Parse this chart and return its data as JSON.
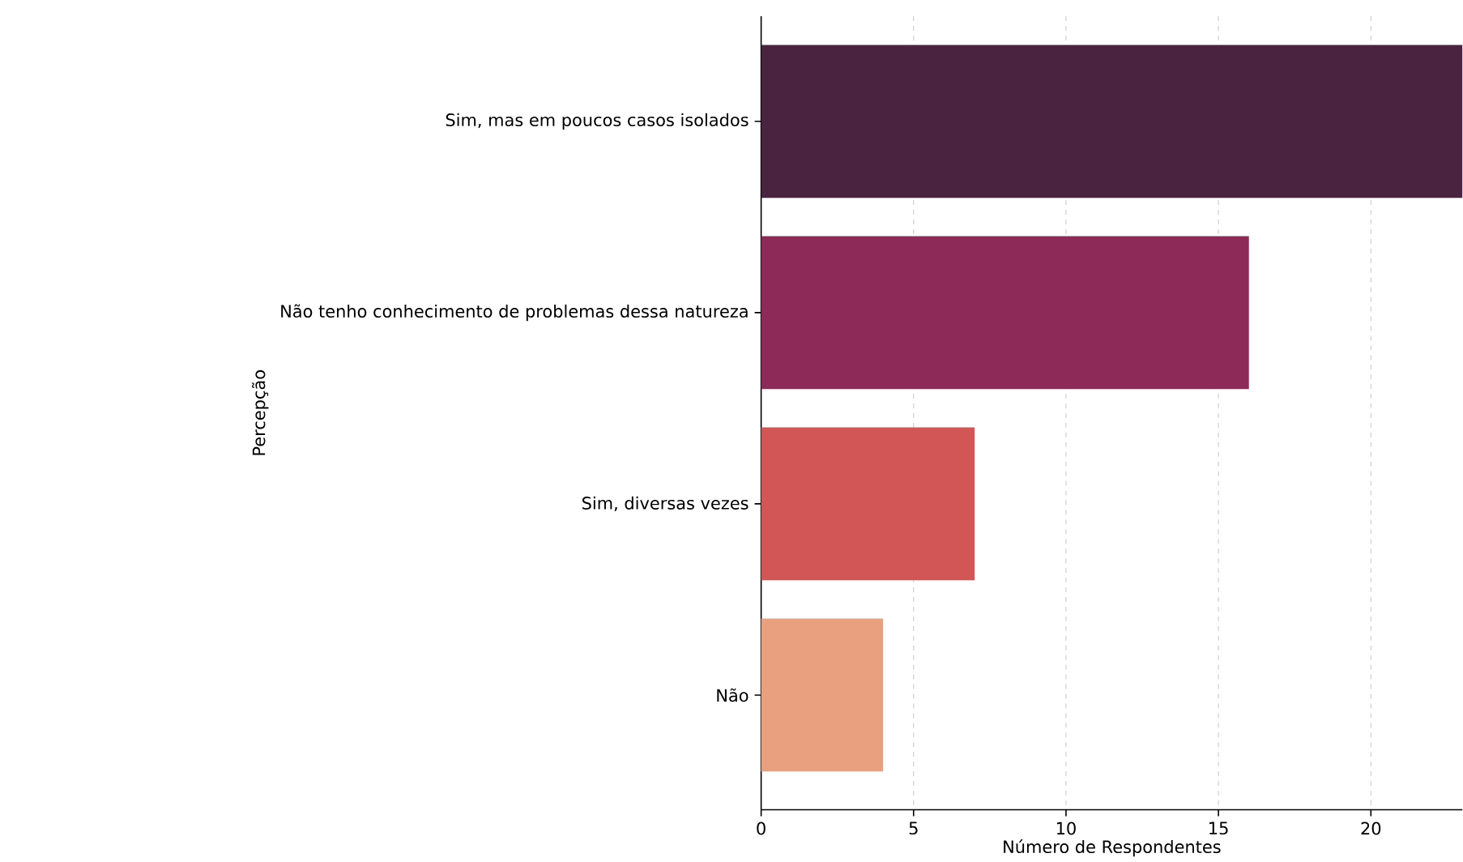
{
  "chart_data": {
    "type": "bar",
    "orientation": "horizontal",
    "categories": [
      "Sim, mas em poucos casos isolados",
      "Não tenho conhecimento de problemas dessa natureza",
      "Sim, diversas vezes",
      "Não"
    ],
    "values": [
      23,
      16,
      7,
      4
    ],
    "colors": [
      "#4a2341",
      "#8e2a58",
      "#d35656",
      "#e8a07f"
    ],
    "xlabel": "Número de Respondentes",
    "ylabel": "Percepção",
    "xlim": [
      0,
      23
    ],
    "xticks": [
      0,
      5,
      10,
      15,
      20
    ],
    "grid": "x"
  }
}
